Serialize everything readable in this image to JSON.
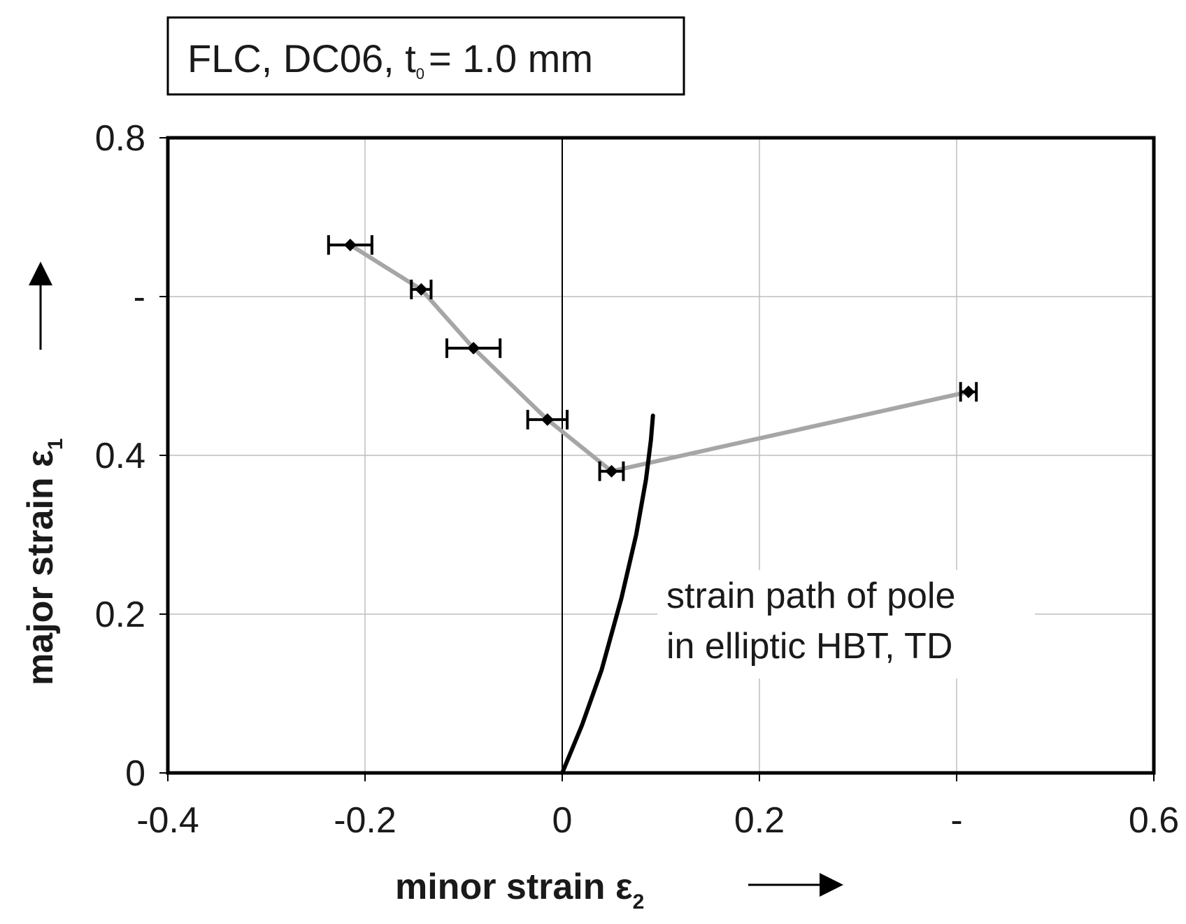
{
  "chart_data": {
    "type": "scatter",
    "title": {
      "prefix": "FLC, DC06, t",
      "subscript": "0",
      "suffix": "= 1.0 mm"
    },
    "xlabel": {
      "text": "minor strain ε",
      "subscript": "2",
      "arrow": "⟶"
    },
    "ylabel": {
      "text": "major strain ε",
      "subscript": "1",
      "arrow": "⟶"
    },
    "xlim": [
      -0.4,
      0.6
    ],
    "ylim": [
      0,
      0.8
    ],
    "grid": true,
    "x_ticks": [
      {
        "value": -0.4,
        "label": "-0.4"
      },
      {
        "value": -0.2,
        "label": "-0.2"
      },
      {
        "value": 0.0,
        "label": "0"
      },
      {
        "value": 0.2,
        "label": "0.2"
      },
      {
        "value": 0.4,
        "label": "-"
      },
      {
        "value": 0.6,
        "label": "0.6"
      }
    ],
    "y_ticks": [
      {
        "value": 0.0,
        "label": "0"
      },
      {
        "value": 0.2,
        "label": "0.2"
      },
      {
        "value": 0.4,
        "label": "0.4"
      },
      {
        "value": 0.6,
        "label": "-"
      },
      {
        "value": 0.8,
        "label": "0.8"
      }
    ],
    "series": [
      {
        "kind": "flc",
        "color": "#a6a6a6",
        "points": [
          {
            "x": -0.215,
            "y": 0.665,
            "xerr": [
              0.022,
              0.022
            ]
          },
          {
            "x": -0.143,
            "y": 0.609,
            "xerr": [
              0.01,
              0.01
            ]
          },
          {
            "x": -0.09,
            "y": 0.535,
            "xerr": [
              0.027,
              0.027
            ]
          },
          {
            "x": -0.015,
            "y": 0.445,
            "xerr": [
              0.02,
              0.02
            ]
          },
          {
            "x": 0.05,
            "y": 0.38,
            "xerr": [
              0.012,
              0.012
            ]
          },
          {
            "x": 0.412,
            "y": 0.48,
            "xerr": [
              0.008,
              0.008
            ]
          }
        ]
      },
      {
        "kind": "strain-path",
        "color": "#000000",
        "points": [
          {
            "x": 0.0,
            "y": 0.0
          },
          {
            "x": 0.02,
            "y": 0.06
          },
          {
            "x": 0.04,
            "y": 0.13
          },
          {
            "x": 0.06,
            "y": 0.22
          },
          {
            "x": 0.075,
            "y": 0.3
          },
          {
            "x": 0.085,
            "y": 0.37
          },
          {
            "x": 0.09,
            "y": 0.42
          },
          {
            "x": 0.092,
            "y": 0.45
          }
        ]
      }
    ],
    "annotations": [
      {
        "line": 1,
        "text": "strain path of pole"
      },
      {
        "line": 2,
        "text": "in elliptic HBT, TD"
      }
    ]
  }
}
